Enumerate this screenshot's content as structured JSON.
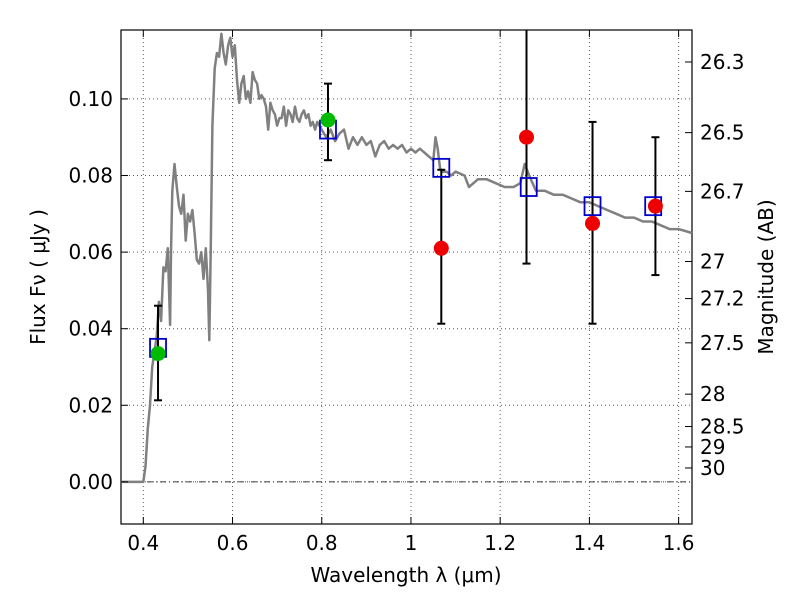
{
  "chart_data": {
    "type": "scatter",
    "xlabel": "Wavelength  λ (μm)",
    "ylabel": "Flux  Fν  ( μJy )",
    "y2label": "Magnitude (AB)",
    "xlim": [
      0.35,
      1.63
    ],
    "ylim": [
      -0.011,
      0.118
    ],
    "grid": true,
    "x_ticks": [
      {
        "value": 0.4,
        "label": "0.4"
      },
      {
        "value": 0.6,
        "label": "0.6"
      },
      {
        "value": 0.8,
        "label": "0.8"
      },
      {
        "value": 1.0,
        "label": "1"
      },
      {
        "value": 1.2,
        "label": "1.2"
      },
      {
        "value": 1.4,
        "label": "1.4"
      },
      {
        "value": 1.6,
        "label": "1.6"
      }
    ],
    "y_ticks": [
      {
        "value": 0.0,
        "label": "0.00"
      },
      {
        "value": 0.02,
        "label": "0.02"
      },
      {
        "value": 0.04,
        "label": "0.04"
      },
      {
        "value": 0.06,
        "label": "0.06"
      },
      {
        "value": 0.08,
        "label": "0.08"
      },
      {
        "value": 0.1,
        "label": "0.10"
      }
    ],
    "mag_ticks": [
      {
        "mag": 26.3,
        "label": "26.3"
      },
      {
        "mag": 26.5,
        "label": "26.5"
      },
      {
        "mag": 26.7,
        "label": "26.7"
      },
      {
        "mag": 27,
        "label": "27"
      },
      {
        "mag": 27.2,
        "label": "27.2"
      },
      {
        "mag": 27.5,
        "label": "27.5"
      },
      {
        "mag": 28,
        "label": "28"
      },
      {
        "mag": 28.5,
        "label": "28.5"
      },
      {
        "mag": 29,
        "label": "29"
      },
      {
        "mag": 30,
        "label": "30"
      }
    ],
    "colors": {
      "model": "#808080",
      "model_points": "#0000cc",
      "detections": "#00bb00",
      "upper_limits": "#ee0000",
      "errorbar": "#000000",
      "grid": "#555555"
    },
    "model_spectrum": [
      [
        0.35,
        0.0
      ],
      [
        0.4,
        0.0
      ],
      [
        0.405,
        0.004
      ],
      [
        0.41,
        0.014
      ],
      [
        0.415,
        0.02
      ],
      [
        0.42,
        0.03
      ],
      [
        0.425,
        0.034
      ],
      [
        0.43,
        0.038
      ],
      [
        0.435,
        0.047
      ],
      [
        0.44,
        0.042
      ],
      [
        0.445,
        0.056
      ],
      [
        0.45,
        0.055
      ],
      [
        0.455,
        0.061
      ],
      [
        0.46,
        0.041
      ],
      [
        0.462,
        0.06
      ],
      [
        0.465,
        0.076
      ],
      [
        0.47,
        0.083
      ],
      [
        0.475,
        0.077
      ],
      [
        0.48,
        0.072
      ],
      [
        0.485,
        0.07
      ],
      [
        0.49,
        0.075
      ],
      [
        0.495,
        0.063
      ],
      [
        0.5,
        0.07
      ],
      [
        0.505,
        0.068
      ],
      [
        0.51,
        0.071
      ],
      [
        0.515,
        0.065
      ],
      [
        0.52,
        0.058
      ],
      [
        0.525,
        0.057
      ],
      [
        0.53,
        0.06
      ],
      [
        0.535,
        0.053
      ],
      [
        0.54,
        0.061
      ],
      [
        0.545,
        0.05
      ],
      [
        0.548,
        0.037
      ],
      [
        0.551,
        0.06
      ],
      [
        0.555,
        0.093
      ],
      [
        0.56,
        0.108
      ],
      [
        0.565,
        0.112
      ],
      [
        0.57,
        0.111
      ],
      [
        0.575,
        0.117
      ],
      [
        0.58,
        0.112
      ],
      [
        0.585,
        0.109
      ],
      [
        0.59,
        0.114
      ],
      [
        0.595,
        0.116
      ],
      [
        0.6,
        0.111
      ],
      [
        0.605,
        0.114
      ],
      [
        0.61,
        0.105
      ],
      [
        0.615,
        0.099
      ],
      [
        0.62,
        0.104
      ],
      [
        0.625,
        0.106
      ],
      [
        0.63,
        0.1
      ],
      [
        0.635,
        0.102
      ],
      [
        0.64,
        0.099
      ],
      [
        0.645,
        0.107
      ],
      [
        0.65,
        0.105
      ],
      [
        0.655,
        0.104
      ],
      [
        0.66,
        0.1
      ],
      [
        0.665,
        0.101
      ],
      [
        0.67,
        0.1
      ],
      [
        0.675,
        0.098
      ],
      [
        0.68,
        0.092
      ],
      [
        0.685,
        0.099
      ],
      [
        0.69,
        0.097
      ],
      [
        0.695,
        0.096
      ],
      [
        0.7,
        0.093
      ],
      [
        0.705,
        0.095
      ],
      [
        0.71,
        0.095
      ],
      [
        0.715,
        0.098
      ],
      [
        0.72,
        0.093
      ],
      [
        0.725,
        0.097
      ],
      [
        0.73,
        0.096
      ],
      [
        0.735,
        0.094
      ],
      [
        0.74,
        0.098
      ],
      [
        0.745,
        0.095
      ],
      [
        0.75,
        0.094
      ],
      [
        0.755,
        0.096
      ],
      [
        0.76,
        0.097
      ],
      [
        0.765,
        0.095
      ],
      [
        0.77,
        0.096
      ],
      [
        0.775,
        0.093
      ],
      [
        0.78,
        0.094
      ],
      [
        0.785,
        0.092
      ],
      [
        0.79,
        0.094
      ],
      [
        0.8,
        0.092
      ],
      [
        0.81,
        0.09
      ],
      [
        0.82,
        0.092
      ],
      [
        0.83,
        0.089
      ],
      [
        0.84,
        0.091
      ],
      [
        0.85,
        0.092
      ],
      [
        0.86,
        0.087
      ],
      [
        0.87,
        0.09
      ],
      [
        0.88,
        0.088
      ],
      [
        0.89,
        0.09
      ],
      [
        0.9,
        0.088
      ],
      [
        0.91,
        0.089
      ],
      [
        0.92,
        0.085
      ],
      [
        0.93,
        0.088
      ],
      [
        0.94,
        0.089
      ],
      [
        0.95,
        0.087
      ],
      [
        0.96,
        0.088
      ],
      [
        0.97,
        0.087
      ],
      [
        0.98,
        0.088
      ],
      [
        0.99,
        0.086
      ],
      [
        1.0,
        0.087
      ],
      [
        1.01,
        0.086
      ],
      [
        1.02,
        0.087
      ],
      [
        1.03,
        0.086
      ],
      [
        1.04,
        0.085
      ],
      [
        1.05,
        0.084
      ],
      [
        1.055,
        0.09
      ],
      [
        1.06,
        0.087
      ],
      [
        1.065,
        0.082
      ],
      [
        1.07,
        0.081
      ],
      [
        1.08,
        0.081
      ],
      [
        1.09,
        0.08
      ],
      [
        1.1,
        0.081
      ],
      [
        1.12,
        0.08
      ],
      [
        1.13,
        0.077
      ],
      [
        1.15,
        0.079
      ],
      [
        1.17,
        0.079
      ],
      [
        1.19,
        0.078
      ],
      [
        1.21,
        0.077
      ],
      [
        1.23,
        0.077
      ],
      [
        1.245,
        0.078
      ],
      [
        1.255,
        0.083
      ],
      [
        1.265,
        0.08
      ],
      [
        1.28,
        0.076
      ],
      [
        1.3,
        0.076
      ],
      [
        1.32,
        0.075
      ],
      [
        1.34,
        0.075
      ],
      [
        1.36,
        0.074
      ],
      [
        1.38,
        0.073
      ],
      [
        1.4,
        0.073
      ],
      [
        1.42,
        0.072
      ],
      [
        1.44,
        0.071
      ],
      [
        1.46,
        0.07
      ],
      [
        1.48,
        0.069
      ],
      [
        1.5,
        0.069
      ],
      [
        1.52,
        0.068
      ],
      [
        1.54,
        0.068
      ],
      [
        1.56,
        0.067
      ],
      [
        1.58,
        0.066
      ],
      [
        1.6,
        0.066
      ],
      [
        1.63,
        0.065
      ]
    ],
    "model_points": [
      {
        "x": 0.433,
        "y": 0.035
      },
      {
        "x": 0.814,
        "y": 0.092
      },
      {
        "x": 1.068,
        "y": 0.082
      },
      {
        "x": 1.264,
        "y": 0.077
      },
      {
        "x": 1.407,
        "y": 0.072
      },
      {
        "x": 1.543,
        "y": 0.072
      }
    ],
    "detections": [
      {
        "x": 0.433,
        "y": 0.0335,
        "yerr_low": 0.0122,
        "yerr_high": 0.0125
      },
      {
        "x": 0.814,
        "y": 0.0945,
        "yerr_low": 0.0105,
        "yerr_high": 0.0095
      }
    ],
    "upper_limits": [
      {
        "x": 1.068,
        "y": 0.061,
        "err_low": 0.0413,
        "err_high": 0.0815
      },
      {
        "x": 1.259,
        "y": 0.09,
        "err_low": 0.057,
        "err_high": 0.118
      },
      {
        "x": 1.407,
        "y": 0.0675,
        "err_low": 0.0413,
        "err_high": 0.094
      },
      {
        "x": 1.548,
        "y": 0.072,
        "err_low": 0.054,
        "err_high": 0.09
      }
    ]
  }
}
